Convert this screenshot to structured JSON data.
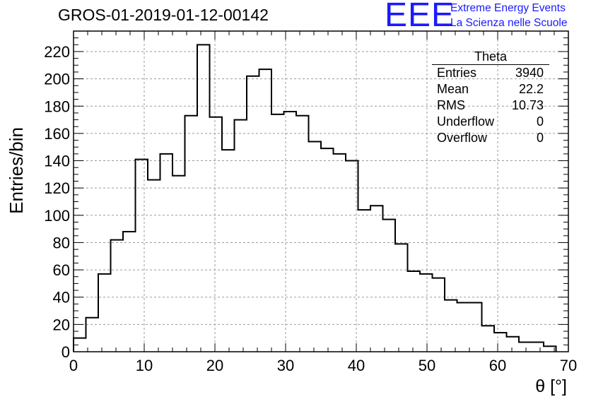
{
  "title": "GROS-01-2019-01-12-00142",
  "logo": {
    "mark": "EEE",
    "line1": "Extreme Energy Events",
    "line2": "La Scienza nelle Scuole",
    "color": "#1a1aff"
  },
  "stats_box": {
    "title": "Theta",
    "rows": [
      {
        "label": "Entries",
        "value": "3940"
      },
      {
        "label": "Mean",
        "value": "22.2"
      },
      {
        "label": "RMS",
        "value": "10.73"
      },
      {
        "label": "Underflow",
        "value": "0"
      },
      {
        "label": "Overflow",
        "value": "0"
      }
    ]
  },
  "chart_data": {
    "type": "bar",
    "style": "step-histogram",
    "xlabel": "θ [°]",
    "ylabel": "Entries/bin",
    "xlim": [
      0,
      70
    ],
    "ylim": [
      0,
      235
    ],
    "grid": true,
    "bin_width": 1.75,
    "bin_edges_start": 0,
    "values": [
      10,
      25,
      57,
      82,
      88,
      141,
      126,
      145,
      129,
      173,
      225,
      172,
      148,
      170,
      202,
      207,
      174,
      176,
      173,
      154,
      149,
      145,
      140,
      104,
      107,
      97,
      79,
      59,
      57,
      54,
      38,
      36,
      36,
      19,
      14,
      11,
      7,
      7,
      4
    ],
    "x_ticks": [
      0,
      10,
      20,
      30,
      40,
      50,
      60,
      70
    ],
    "y_ticks": [
      0,
      20,
      40,
      60,
      80,
      100,
      120,
      140,
      160,
      180,
      200,
      220
    ]
  }
}
